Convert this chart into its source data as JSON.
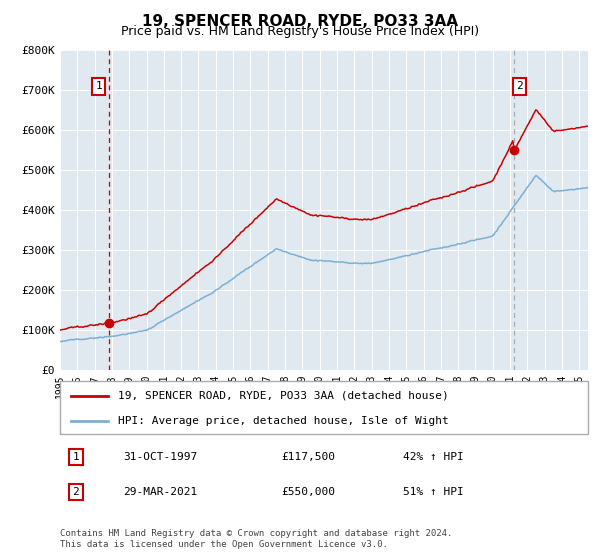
{
  "title": "19, SPENCER ROAD, RYDE, PO33 3AA",
  "subtitle": "Price paid vs. HM Land Registry's House Price Index (HPI)",
  "legend_line1": "19, SPENCER ROAD, RYDE, PO33 3AA (detached house)",
  "legend_line2": "HPI: Average price, detached house, Isle of Wight",
  "footer": "Contains HM Land Registry data © Crown copyright and database right 2024.\nThis data is licensed under the Open Government Licence v3.0.",
  "hpi_color": "#7BAFD4",
  "property_color": "#CC0000",
  "background_color": "#E0E8F0",
  "ylim": [
    0,
    800000
  ],
  "yticks": [
    0,
    100000,
    200000,
    300000,
    400000,
    500000,
    600000,
    700000,
    800000
  ],
  "ytick_labels": [
    "£0",
    "£100K",
    "£200K",
    "£300K",
    "£400K",
    "£500K",
    "£600K",
    "£700K",
    "£800K"
  ],
  "sale1_year": 1997.83,
  "sale1_value": 117500,
  "sale2_year": 2021.23,
  "sale2_value": 550000,
  "xmin": 1995.0,
  "xmax": 2025.5,
  "annotation1_label": "1",
  "annotation2_label": "2",
  "row1_date": "31-OCT-1997",
  "row1_price": "£117,500",
  "row1_hpi": "42% ↑ HPI",
  "row2_date": "29-MAR-2021",
  "row2_price": "£550,000",
  "row2_hpi": "51% ↑ HPI"
}
